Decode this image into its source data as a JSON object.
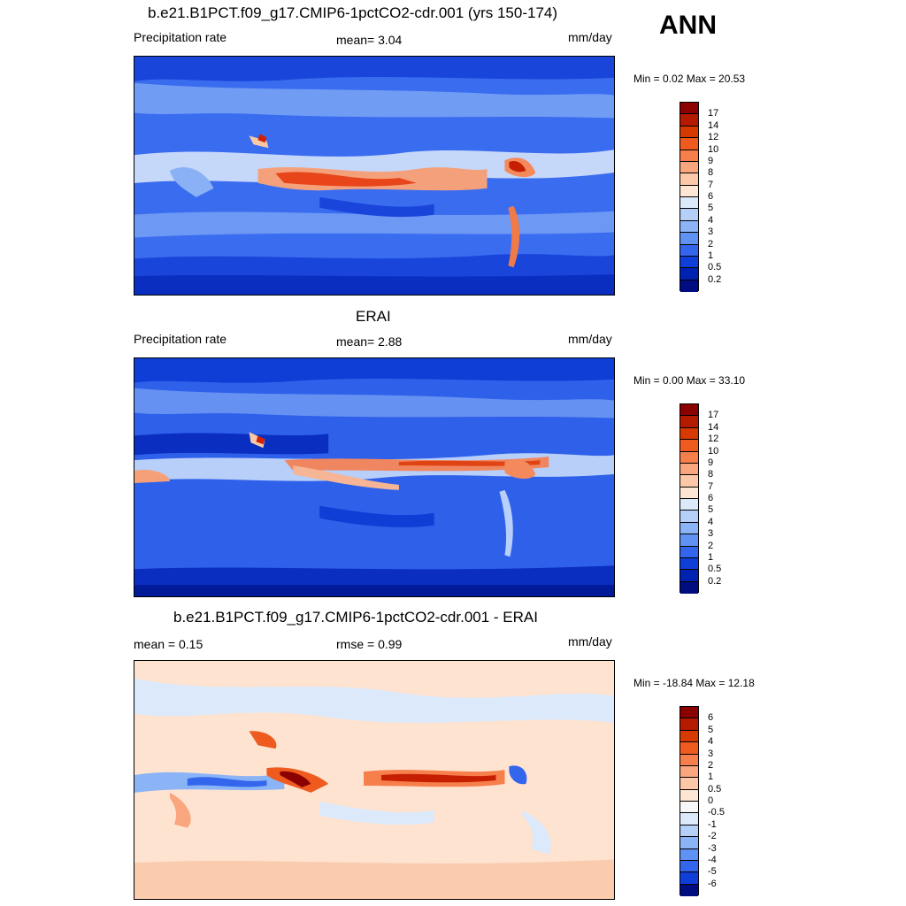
{
  "season": "ANN",
  "panels": [
    {
      "title": "b.e21.B1PCT.f09_g17.CMIP6-1pctCO2-cdr.001 (yrs 150-174)",
      "left_label": "Precipitation rate",
      "center_label": "mean=   3.04",
      "right_label": "mm/day",
      "minmax": "Min =   0.02 Max =  20.53",
      "colorbar": {
        "levels": [
          "17",
          "14",
          "12",
          "10",
          "9",
          "8",
          "7",
          "6",
          "5",
          "4",
          "3",
          "2",
          "1",
          "0.5",
          "0.2"
        ],
        "colors": [
          "#8b0000",
          "#b31a00",
          "#d63a00",
          "#ef5a1e",
          "#f67f4c",
          "#f9a57d",
          "#fcc8a8",
          "#fde6d3",
          "#dbe9fb",
          "#b4d0f8",
          "#8bb4f6",
          "#5f92f2",
          "#3366ec",
          "#0f3fd8",
          "#0022b0",
          "#000d80"
        ]
      }
    },
    {
      "title": "ERAI",
      "left_label": "Precipitation rate",
      "center_label": "mean=   2.88",
      "right_label": "mm/day",
      "minmax": "Min =   0.00 Max =  33.10",
      "colorbar": {
        "levels": [
          "17",
          "14",
          "12",
          "10",
          "9",
          "8",
          "7",
          "6",
          "5",
          "4",
          "3",
          "2",
          "1",
          "0.5",
          "0.2"
        ],
        "colors": [
          "#8b0000",
          "#b31a00",
          "#d63a00",
          "#ef5a1e",
          "#f67f4c",
          "#f9a57d",
          "#fcc8a8",
          "#fde6d3",
          "#dbe9fb",
          "#b4d0f8",
          "#8bb4f6",
          "#5f92f2",
          "#3366ec",
          "#0f3fd8",
          "#0022b0",
          "#000d80"
        ]
      }
    },
    {
      "title": "b.e21.B1PCT.f09_g17.CMIP6-1pctCO2-cdr.001 - ERAI",
      "left_label": "mean =   0.15",
      "center_label": "rmse =   0.99",
      "right_label": "mm/day",
      "minmax": "Min = -18.84 Max =  12.18",
      "colorbar": {
        "levels": [
          "6",
          "5",
          "4",
          "3",
          "2",
          "1",
          "0.5",
          "0",
          "-0.5",
          "-1",
          "-2",
          "-3",
          "-4",
          "-5",
          "-6"
        ],
        "colors": [
          "#8b0000",
          "#b31a00",
          "#d63a00",
          "#ef5a1e",
          "#f67f4c",
          "#f9a57d",
          "#fcc8a8",
          "#fde6d3",
          "#f8f8f8",
          "#dbe9fb",
          "#b4d0f8",
          "#8bb4f6",
          "#5f92f2",
          "#3366ec",
          "#0f3fd8",
          "#000d80"
        ]
      }
    }
  ]
}
